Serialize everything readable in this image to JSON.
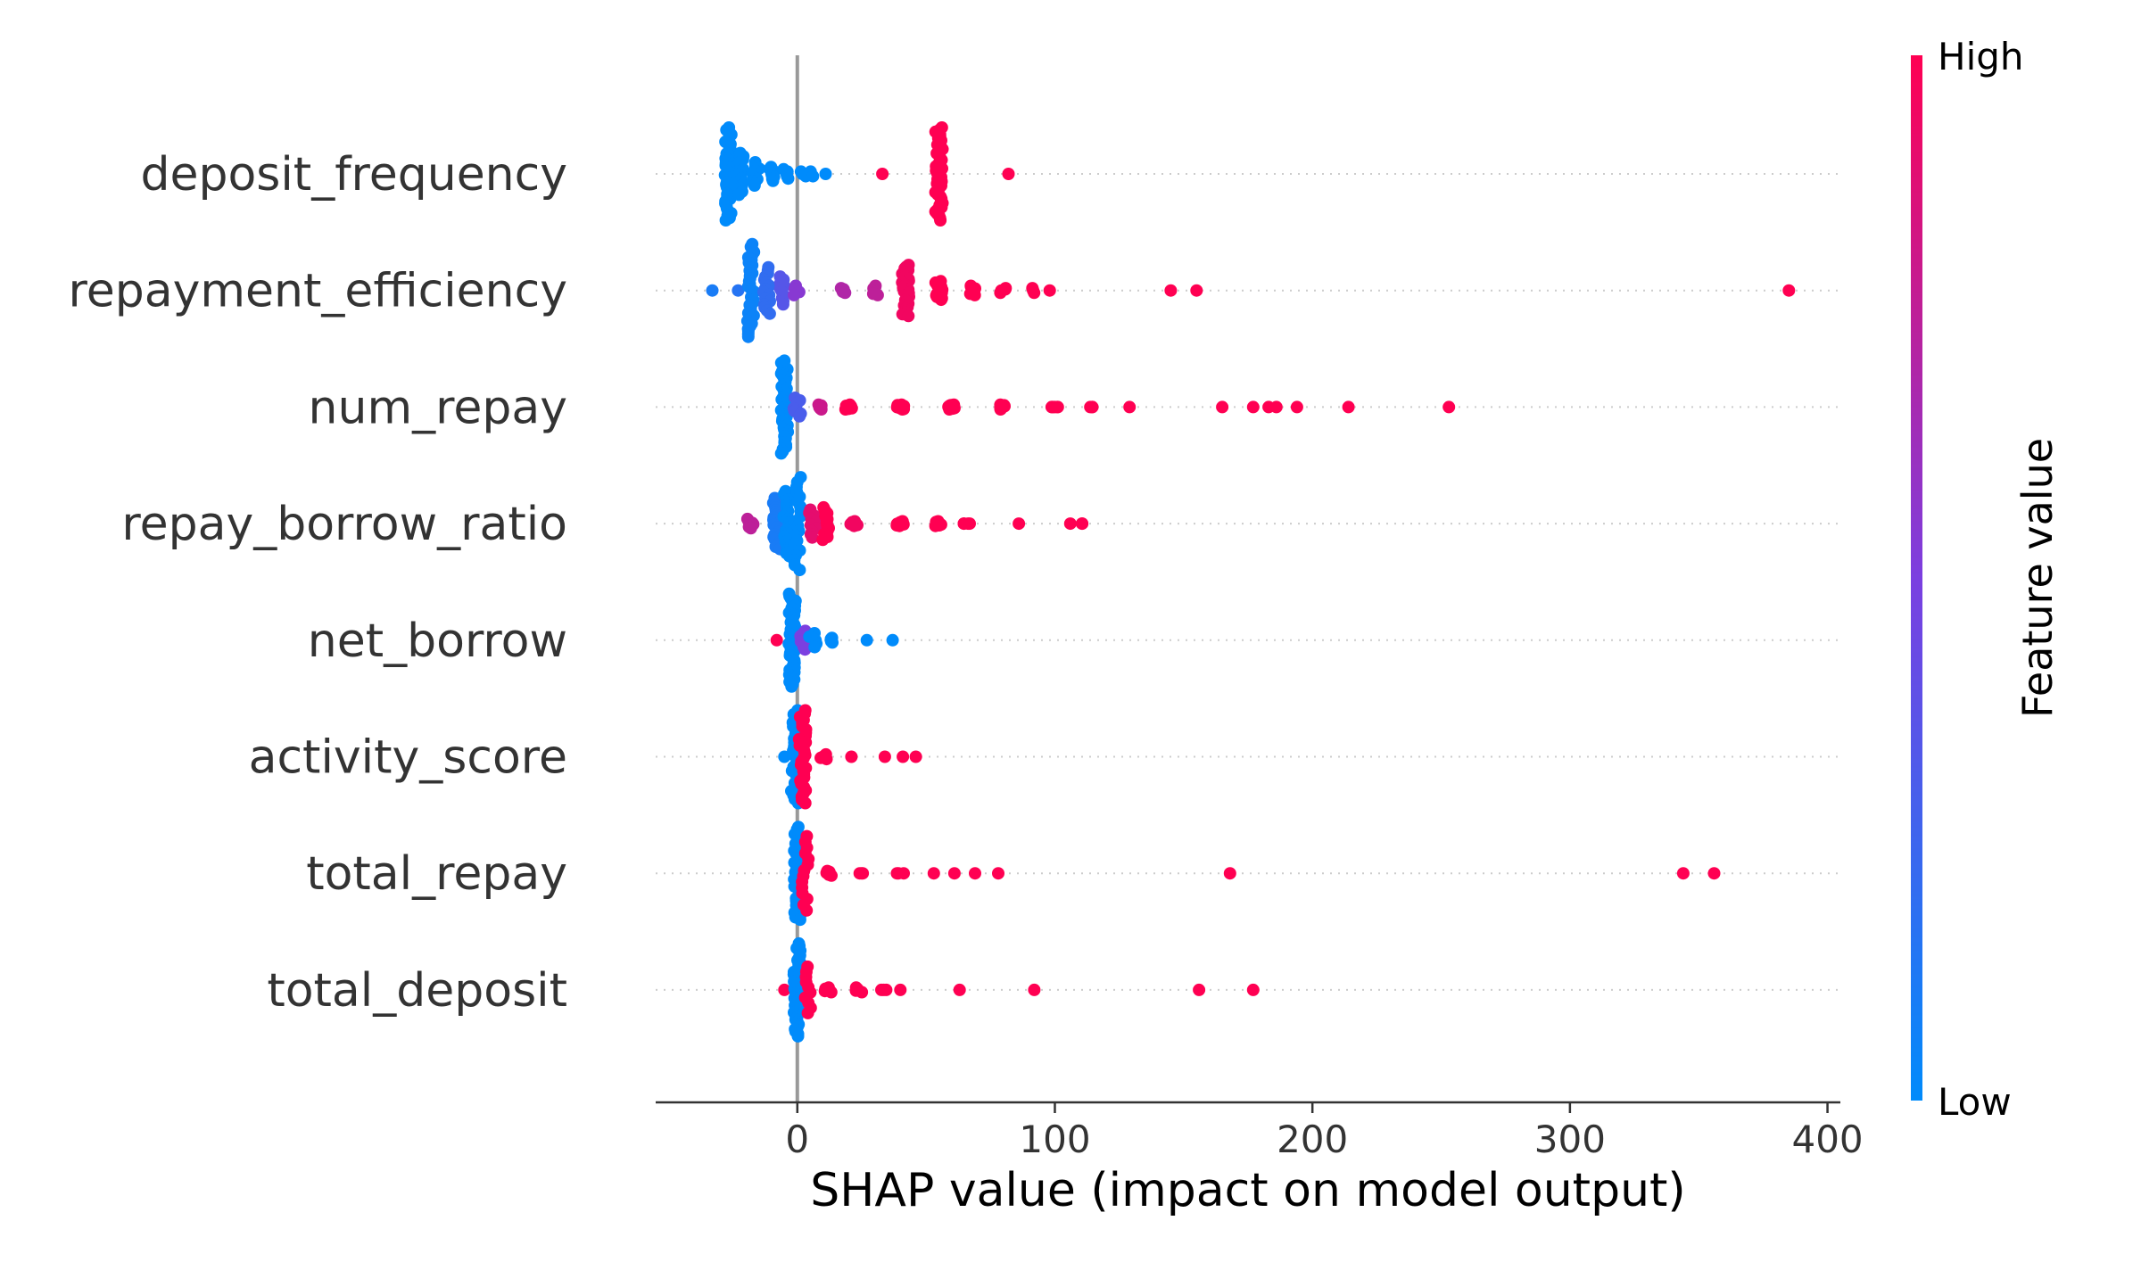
{
  "chart_data": {
    "type": "scatter",
    "subtype": "shap-beeswarm",
    "xlabel": "SHAP value (impact on model output)",
    "xlim": [
      -55,
      405
    ],
    "x_ticks": [
      0,
      100,
      200,
      300,
      400
    ],
    "x_tick_labels": [
      "0",
      "100",
      "200",
      "300",
      "400"
    ],
    "grid": false,
    "features": [
      {
        "name": "deposit_frequency",
        "points": [
          {
            "x": -27,
            "v": 0.0,
            "spread": 1.0,
            "n": 40
          },
          {
            "x": -22,
            "v": 0.0,
            "spread": 0.45,
            "n": 14
          },
          {
            "x": -16,
            "v": 0.0,
            "spread": 0.25,
            "n": 12
          },
          {
            "x": -10,
            "v": 0.0,
            "spread": 0.15,
            "n": 8
          },
          {
            "x": -4,
            "v": 0.0,
            "spread": 0.1,
            "n": 5
          },
          {
            "x": 2,
            "v": 0.0,
            "spread": 0.05,
            "n": 3
          },
          {
            "x": 6,
            "v": 0.0,
            "spread": 0.05,
            "n": 2
          },
          {
            "x": 11,
            "v": 0.0,
            "spread": 0.0,
            "n": 1
          },
          {
            "x": 33,
            "v": 1.0,
            "spread": 0.0,
            "n": 1
          },
          {
            "x": 55,
            "v": 1.0,
            "spread": 1.0,
            "n": 44
          },
          {
            "x": 82,
            "v": 1.0,
            "spread": 0.0,
            "n": 1
          }
        ]
      },
      {
        "name": "repayment_efficiency",
        "points": [
          {
            "x": -33,
            "v": 0.1,
            "spread": 0.0,
            "n": 1
          },
          {
            "x": -23,
            "v": 0.15,
            "spread": 0.0,
            "n": 1
          },
          {
            "x": -18,
            "v": 0.05,
            "spread": 1.0,
            "n": 36
          },
          {
            "x": -12,
            "v": 0.2,
            "spread": 0.5,
            "n": 16
          },
          {
            "x": -6,
            "v": 0.35,
            "spread": 0.3,
            "n": 10
          },
          {
            "x": 0,
            "v": 0.55,
            "spread": 0.1,
            "n": 4
          },
          {
            "x": 18,
            "v": 0.7,
            "spread": 0.05,
            "n": 5
          },
          {
            "x": 30,
            "v": 0.75,
            "spread": 0.1,
            "n": 8
          },
          {
            "x": 42,
            "v": 0.95,
            "spread": 0.55,
            "n": 30
          },
          {
            "x": 55,
            "v": 1.0,
            "spread": 0.2,
            "n": 14
          },
          {
            "x": 68,
            "v": 1.0,
            "spread": 0.1,
            "n": 8
          },
          {
            "x": 80,
            "v": 1.0,
            "spread": 0.05,
            "n": 5
          },
          {
            "x": 92,
            "v": 1.0,
            "spread": 0.05,
            "n": 3
          },
          {
            "x": 98,
            "v": 1.0,
            "spread": 0.0,
            "n": 1
          },
          {
            "x": 145,
            "v": 1.0,
            "spread": 0.0,
            "n": 1
          },
          {
            "x": 155,
            "v": 1.0,
            "spread": 0.0,
            "n": 1
          },
          {
            "x": 385,
            "v": 1.0,
            "spread": 0.0,
            "n": 1
          }
        ]
      },
      {
        "name": "num_repay",
        "points": [
          {
            "x": -5,
            "v": 0.0,
            "spread": 1.0,
            "n": 44
          },
          {
            "x": 0,
            "v": 0.3,
            "spread": 0.2,
            "n": 8
          },
          {
            "x": 8,
            "v": 0.8,
            "spread": 0.05,
            "n": 6
          },
          {
            "x": 20,
            "v": 1.0,
            "spread": 0.05,
            "n": 10
          },
          {
            "x": 40,
            "v": 1.0,
            "spread": 0.05,
            "n": 12
          },
          {
            "x": 60,
            "v": 1.0,
            "spread": 0.05,
            "n": 12
          },
          {
            "x": 80,
            "v": 1.0,
            "spread": 0.05,
            "n": 10
          },
          {
            "x": 100,
            "v": 1.0,
            "spread": 0.0,
            "n": 6
          },
          {
            "x": 114,
            "v": 1.0,
            "spread": 0.0,
            "n": 3
          },
          {
            "x": 129,
            "v": 1.0,
            "spread": 0.0,
            "n": 1
          },
          {
            "x": 165,
            "v": 1.0,
            "spread": 0.0,
            "n": 1
          },
          {
            "x": 177,
            "v": 1.0,
            "spread": 0.0,
            "n": 1
          },
          {
            "x": 183,
            "v": 1.0,
            "spread": 0.0,
            "n": 1
          },
          {
            "x": 186,
            "v": 1.0,
            "spread": 0.0,
            "n": 1
          },
          {
            "x": 194,
            "v": 1.0,
            "spread": 0.0,
            "n": 1
          },
          {
            "x": 214,
            "v": 1.0,
            "spread": 0.0,
            "n": 1
          },
          {
            "x": 253,
            "v": 1.0,
            "spread": 0.0,
            "n": 1
          }
        ]
      },
      {
        "name": "repay_borrow_ratio",
        "points": [
          {
            "x": -18,
            "v": 0.75,
            "spread": 0.1,
            "n": 8
          },
          {
            "x": -8,
            "v": 0.1,
            "spread": 0.55,
            "n": 22
          },
          {
            "x": -4,
            "v": 0.0,
            "spread": 0.7,
            "n": 24
          },
          {
            "x": 0,
            "v": 0.0,
            "spread": 1.0,
            "n": 20
          },
          {
            "x": 6,
            "v": 0.9,
            "spread": 0.3,
            "n": 10
          },
          {
            "x": 11,
            "v": 1.0,
            "spread": 0.35,
            "n": 12
          },
          {
            "x": 22,
            "v": 0.95,
            "spread": 0.05,
            "n": 6
          },
          {
            "x": 40,
            "v": 1.0,
            "spread": 0.05,
            "n": 10
          },
          {
            "x": 55,
            "v": 1.0,
            "spread": 0.05,
            "n": 8
          },
          {
            "x": 66,
            "v": 1.0,
            "spread": 0.0,
            "n": 4
          },
          {
            "x": 86,
            "v": 1.0,
            "spread": 0.0,
            "n": 1
          },
          {
            "x": 106,
            "v": 1.0,
            "spread": 0.0,
            "n": 1
          },
          {
            "x": 111,
            "v": 1.0,
            "spread": 0.0,
            "n": 2
          }
        ]
      },
      {
        "name": "net_borrow",
        "points": [
          {
            "x": -8,
            "v": 1.0,
            "spread": 0.0,
            "n": 1
          },
          {
            "x": -2,
            "v": 0.0,
            "spread": 1.0,
            "n": 40
          },
          {
            "x": 2,
            "v": 0.5,
            "spread": 0.2,
            "n": 8
          },
          {
            "x": 6,
            "v": 0.0,
            "spread": 0.15,
            "n": 5
          },
          {
            "x": 14,
            "v": 0.0,
            "spread": 0.05,
            "n": 5
          },
          {
            "x": 27,
            "v": 0.0,
            "spread": 0.0,
            "n": 1
          },
          {
            "x": 37,
            "v": 0.0,
            "spread": 0.0,
            "n": 1
          }
        ]
      },
      {
        "name": "activity_score",
        "points": [
          {
            "x": -5,
            "v": 0.0,
            "spread": 0.0,
            "n": 1
          },
          {
            "x": -1,
            "v": 0.0,
            "spread": 1.0,
            "n": 24
          },
          {
            "x": 2,
            "v": 1.0,
            "spread": 1.0,
            "n": 30
          },
          {
            "x": 10,
            "v": 1.0,
            "spread": 0.05,
            "n": 5
          },
          {
            "x": 21,
            "v": 1.0,
            "spread": 0.0,
            "n": 1
          },
          {
            "x": 34,
            "v": 1.0,
            "spread": 0.0,
            "n": 1
          },
          {
            "x": 41,
            "v": 1.0,
            "spread": 0.0,
            "n": 1
          },
          {
            "x": 46,
            "v": 1.0,
            "spread": 0.0,
            "n": 1
          }
        ]
      },
      {
        "name": "total_repay",
        "points": [
          {
            "x": 0,
            "v": 0.0,
            "spread": 1.0,
            "n": 40
          },
          {
            "x": 3,
            "v": 1.0,
            "spread": 0.8,
            "n": 14
          },
          {
            "x": 12,
            "v": 1.0,
            "spread": 0.05,
            "n": 6
          },
          {
            "x": 25,
            "v": 1.0,
            "spread": 0.0,
            "n": 3
          },
          {
            "x": 40,
            "v": 1.0,
            "spread": 0.0,
            "n": 3
          },
          {
            "x": 53,
            "v": 1.0,
            "spread": 0.0,
            "n": 1
          },
          {
            "x": 61,
            "v": 1.0,
            "spread": 0.0,
            "n": 1
          },
          {
            "x": 69,
            "v": 1.0,
            "spread": 0.0,
            "n": 1
          },
          {
            "x": 78,
            "v": 1.0,
            "spread": 0.0,
            "n": 1
          },
          {
            "x": 168,
            "v": 1.0,
            "spread": 0.0,
            "n": 1
          },
          {
            "x": 344,
            "v": 1.0,
            "spread": 0.0,
            "n": 1
          },
          {
            "x": 356,
            "v": 1.0,
            "spread": 0.0,
            "n": 1
          }
        ]
      },
      {
        "name": "total_deposit",
        "points": [
          {
            "x": -5,
            "v": 1.0,
            "spread": 0.0,
            "n": 1
          },
          {
            "x": 0,
            "v": 0.0,
            "spread": 1.0,
            "n": 40
          },
          {
            "x": 4,
            "v": 1.0,
            "spread": 0.5,
            "n": 10
          },
          {
            "x": 12,
            "v": 1.0,
            "spread": 0.05,
            "n": 5
          },
          {
            "x": 24,
            "v": 1.0,
            "spread": 0.05,
            "n": 4
          },
          {
            "x": 34,
            "v": 1.0,
            "spread": 0.0,
            "n": 3
          },
          {
            "x": 40,
            "v": 1.0,
            "spread": 0.0,
            "n": 1
          },
          {
            "x": 63,
            "v": 1.0,
            "spread": 0.0,
            "n": 1
          },
          {
            "x": 92,
            "v": 1.0,
            "spread": 0.0,
            "n": 1
          },
          {
            "x": 156,
            "v": 1.0,
            "spread": 0.0,
            "n": 1
          },
          {
            "x": 177,
            "v": 1.0,
            "spread": 0.0,
            "n": 1
          }
        ]
      }
    ],
    "colorbar": {
      "title": "Feature value",
      "high_label": "High",
      "low_label": "Low",
      "colors": [
        "#008bfb",
        "#ff0052"
      ]
    }
  },
  "colors": {
    "low": "#008bfb",
    "mid": "#7b3fe0",
    "high": "#ff0052",
    "zero_line": "#999999",
    "axis": "#333333",
    "row_guide": "#cccccc"
  }
}
